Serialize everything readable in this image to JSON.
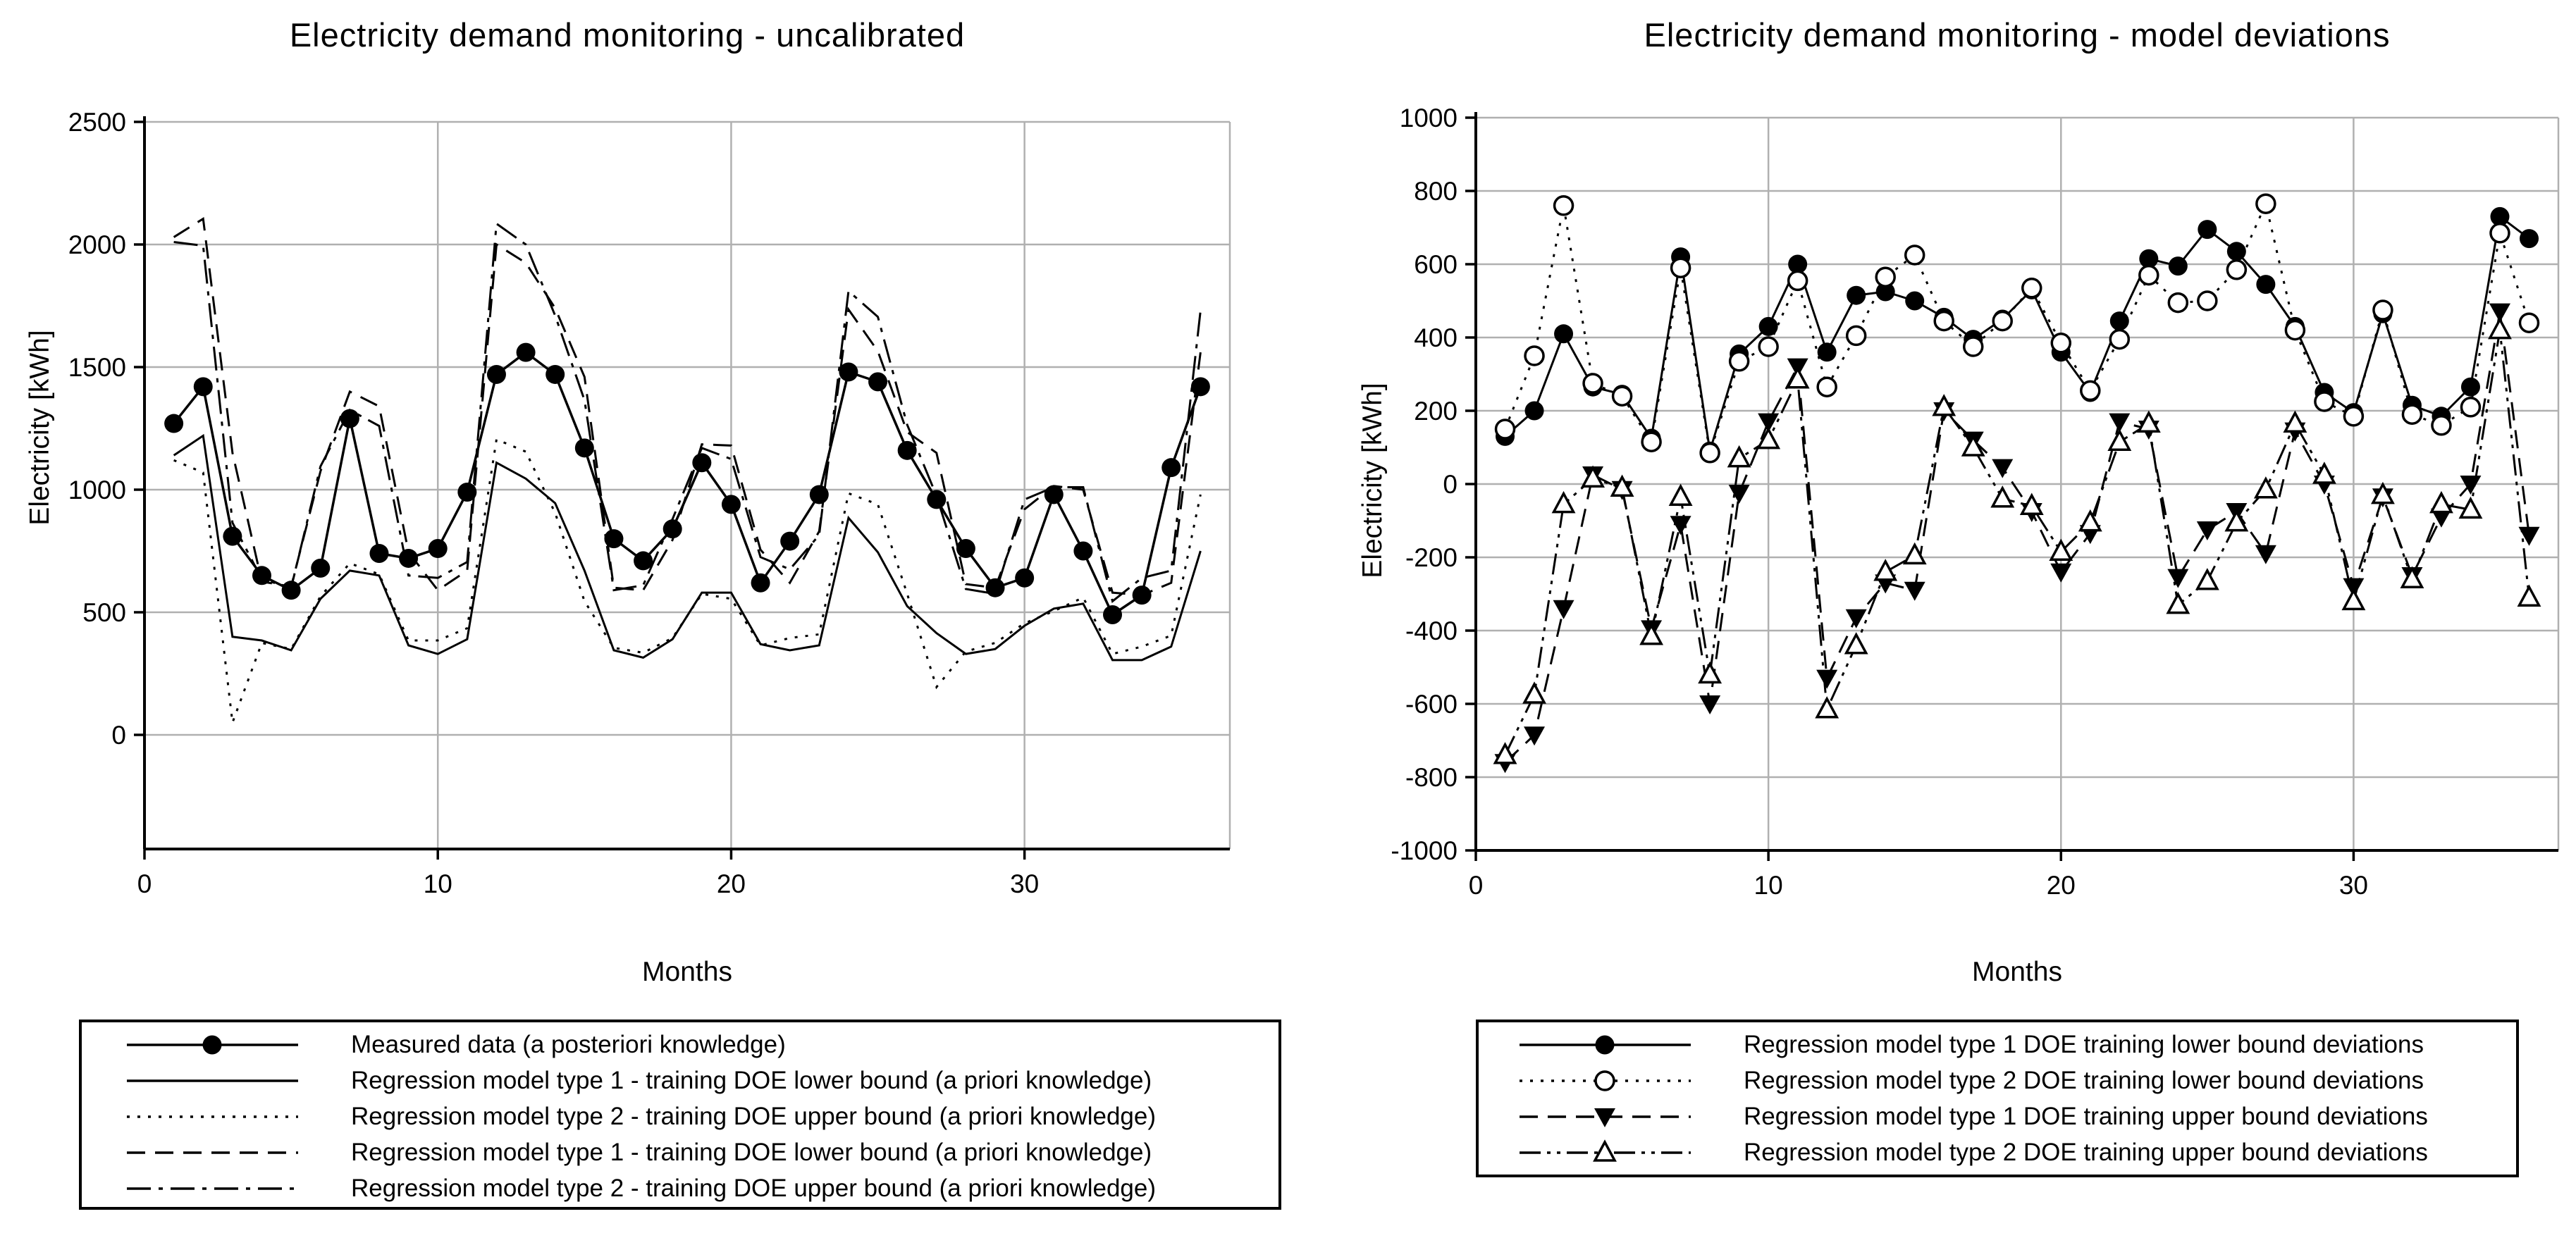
{
  "colors": {
    "line": "#000000",
    "grid": "#b0b0b0",
    "background": "#ffffff",
    "text": "#000000"
  },
  "chart_data": [
    {
      "type": "line",
      "title": "Electricity demand monitoring - uncalibrated",
      "xlabel": "Months",
      "ylabel": "Electricity [kWh]",
      "xlim": [
        0,
        37
      ],
      "ylim": [
        0,
        2500
      ],
      "xticks": [
        0,
        10,
        20,
        30
      ],
      "yticks": [
        0,
        500,
        1000,
        1500,
        2000,
        2500
      ],
      "grid": true,
      "legend_position": "below-left",
      "x": [
        1,
        2,
        3,
        4,
        5,
        6,
        7,
        8,
        9,
        10,
        11,
        12,
        13,
        14,
        15,
        16,
        17,
        18,
        19,
        20,
        21,
        22,
        23,
        24,
        25,
        26,
        27,
        28,
        29,
        30,
        31,
        32,
        33,
        34,
        35,
        36
      ],
      "series": [
        {
          "name": "Measured data (a posteriori knowledge)",
          "line": "solid",
          "marker": "filled-circle",
          "values": [
            1270,
            1420,
            810,
            650,
            590,
            680,
            1290,
            740,
            720,
            760,
            990,
            1470,
            1560,
            1470,
            1170,
            800,
            710,
            840,
            1110,
            940,
            620,
            790,
            980,
            1480,
            1440,
            1160,
            960,
            760,
            600,
            640,
            980,
            750,
            490,
            570,
            1090,
            1420
          ]
        },
        {
          "name": "Regression model type 1 - training DOE lower bound (a priori knowledge)",
          "line": "solid",
          "marker": "none",
          "values": [
            1140,
            1220,
            400,
            385,
            345,
            555,
            670,
            650,
            365,
            330,
            390,
            1110,
            1045,
            945,
            670,
            345,
            315,
            390,
            580,
            580,
            370,
            345,
            365,
            885,
            745,
            525,
            415,
            330,
            350,
            445,
            515,
            535,
            305,
            305,
            360,
            750
          ]
        },
        {
          "name": "Regression model type 2 - training DOE upper bound (a priori knowledge)",
          "line": "dotted",
          "marker": "none",
          "values": [
            1120,
            1070,
            50,
            375,
            350,
            565,
            700,
            655,
            385,
            385,
            435,
            1205,
            1155,
            905,
            545,
            355,
            335,
            395,
            575,
            555,
            365,
            395,
            410,
            985,
            940,
            575,
            195,
            340,
            375,
            455,
            505,
            560,
            330,
            360,
            405,
            980
          ]
        },
        {
          "name": "Regression model type 1 - training DOE lower bound (a priori knowledge)",
          "line": "dashed",
          "marker": "none",
          "values": [
            2030,
            2105,
            1150,
            625,
            605,
            1075,
            1400,
            1340,
            745,
            590,
            670,
            2000,
            1925,
            1740,
            1460,
            600,
            590,
            795,
            1185,
            1180,
            755,
            620,
            830,
            1735,
            1565,
            1235,
            1150,
            615,
            600,
            920,
            1015,
            1000,
            580,
            570,
            620,
            1560
          ]
        },
        {
          "name": "Regression model type 2 - training DOE upper bound (a priori knowledge)",
          "line": "dashdot",
          "marker": "none",
          "values": [
            2010,
            1995,
            865,
            635,
            600,
            1095,
            1325,
            1260,
            650,
            640,
            705,
            2085,
            2000,
            1710,
            1365,
            590,
            610,
            880,
            1170,
            1125,
            725,
            675,
            815,
            1810,
            1705,
            1265,
            975,
            595,
            575,
            960,
            1010,
            1010,
            545,
            640,
            670,
            1730
          ]
        }
      ]
    },
    {
      "type": "line",
      "title": "Electricity demand monitoring - model deviations",
      "xlabel": "Months",
      "ylabel": "Electricity [kWh]",
      "xlim": [
        0,
        37
      ],
      "ylim": [
        -1000,
        1000
      ],
      "xticks": [
        0,
        10,
        20,
        30
      ],
      "yticks": [
        -1000,
        -800,
        -600,
        -400,
        -200,
        0,
        200,
        400,
        600,
        800,
        1000
      ],
      "grid": true,
      "legend_position": "below-right",
      "x": [
        1,
        2,
        3,
        4,
        5,
        6,
        7,
        8,
        9,
        10,
        11,
        12,
        13,
        14,
        15,
        16,
        17,
        18,
        19,
        20,
        21,
        22,
        23,
        24,
        25,
        26,
        27,
        28,
        29,
        30,
        31,
        32,
        33,
        34,
        35,
        36
      ],
      "series": [
        {
          "name": "Regression model type 1 DOE training lower bound deviations",
          "line": "solid",
          "marker": "filled-circle",
          "values": [
            130,
            200,
            410,
            265,
            245,
            125,
            620,
            90,
            355,
            430,
            600,
            360,
            515,
            525,
            500,
            455,
            395,
            450,
            530,
            360,
            250,
            445,
            615,
            595,
            695,
            635,
            545,
            430,
            250,
            195,
            465,
            215,
            185,
            265,
            730,
            670
          ]
        },
        {
          "name": "Regression model type 2 DOE training lower bound deviations",
          "line": "dotted",
          "marker": "open-circle",
          "values": [
            150,
            350,
            760,
            275,
            240,
            115,
            590,
            85,
            335,
            375,
            555,
            265,
            405,
            565,
            625,
            445,
            375,
            445,
            535,
            385,
            255,
            395,
            570,
            495,
            500,
            585,
            765,
            420,
            225,
            185,
            475,
            190,
            160,
            210,
            685,
            440
          ]
        },
        {
          "name": "Regression model type 1 DOE training upper bound deviations",
          "line": "dashed",
          "marker": "filled-triangle-down",
          "values": [
            -760,
            -685,
            -340,
            25,
            -15,
            -395,
            -110,
            -600,
            -25,
            170,
            320,
            -530,
            -365,
            -270,
            -290,
            200,
            120,
            45,
            -75,
            -240,
            -135,
            170,
            150,
            -255,
            -125,
            -75,
            -190,
            145,
            0,
            -280,
            -35,
            -250,
            -90,
            0,
            470,
            -140
          ]
        },
        {
          "name": "Regression model type 2 DOE training upper bound deviations",
          "line": "dashdotdot",
          "marker": "open-triangle-up",
          "values": [
            -740,
            -575,
            -55,
            15,
            -10,
            -415,
            -35,
            -520,
            70,
            120,
            285,
            -615,
            -440,
            -240,
            -195,
            210,
            100,
            -40,
            -60,
            -185,
            -105,
            115,
            165,
            -330,
            -265,
            -105,
            -15,
            165,
            25,
            -320,
            -30,
            -260,
            -55,
            -70,
            420,
            -310
          ]
        }
      ]
    }
  ]
}
